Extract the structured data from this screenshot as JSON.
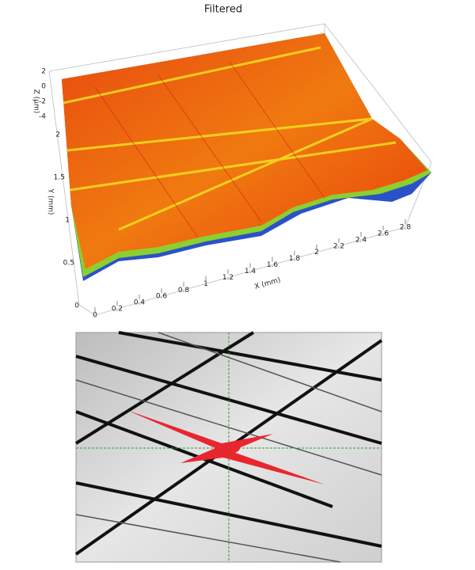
{
  "plot": {
    "title": "Filtered",
    "z_label": "Z (µm)",
    "y_label": "Y (mm)",
    "x_label": "X (mm)",
    "z_ticks": [
      2,
      0,
      -2,
      -4
    ],
    "y_ticks": [
      2,
      1.5,
      1,
      0.5,
      0
    ],
    "x_ticks": [
      0,
      0.2,
      0.4,
      0.6,
      0.8,
      1,
      1.2,
      1.4,
      1.6,
      1.8,
      2,
      2.2,
      2.4,
      2.6,
      2.8
    ]
  }
}
